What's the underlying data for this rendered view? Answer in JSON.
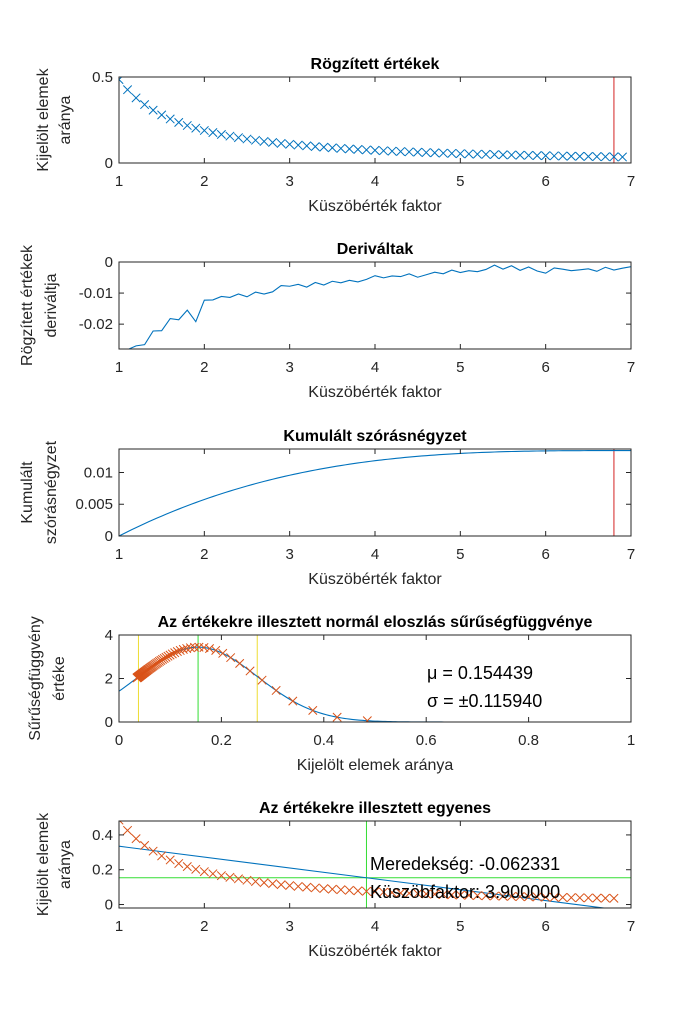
{
  "colors": {
    "blue": "#0072BD",
    "orange": "#D95319",
    "red": "#D42222",
    "green": "#33DD33",
    "yellow": "#EEDD33",
    "axis": "#262626"
  },
  "chart_data": [
    {
      "type": "scatter",
      "title": "Rögzített értékek",
      "xlabel": "Küszöbérték faktor",
      "ylabel": [
        "Kijelölt elemek",
        "aránya"
      ],
      "xlim": [
        1,
        7
      ],
      "ylim": [
        0,
        0.5
      ],
      "xticks": [
        1,
        2,
        3,
        4,
        5,
        6,
        7
      ],
      "yticks": [
        0,
        0.5
      ],
      "ytick_labels": [
        "0",
        "0.5"
      ],
      "series": [
        {
          "marker": "x",
          "color": "#0072BD",
          "curve": {
            "kind": "decay",
            "x_start": 1,
            "x_end": 6.9,
            "step": 0.1,
            "y0": 0.485,
            "asymptote": 0.0,
            "k": 0.72,
            "form": "power"
          }
        }
      ],
      "vlines": [
        {
          "x": 6.8,
          "color": "#D42222",
          "y": [
            0,
            0.5
          ]
        }
      ]
    },
    {
      "type": "line",
      "title": "Deriváltak",
      "xlabel": "Küszöbérték faktor",
      "ylabel": [
        "Rögzített értékek",
        "deriváltja"
      ],
      "xlim": [
        1,
        7
      ],
      "ylim": [
        -0.028,
        0
      ],
      "xticks": [
        1,
        2,
        3,
        4,
        5,
        6,
        7
      ],
      "yticks": [
        -0.02,
        -0.01,
        0
      ],
      "ytick_labels": [
        "-0.02",
        "-0.01",
        "0"
      ],
      "series": [
        {
          "color": "#0072BD",
          "x_start": 1.1,
          "step": 0.1,
          "y": [
            -0.0282,
            -0.027,
            -0.0266,
            -0.0222,
            -0.0221,
            -0.0182,
            -0.0186,
            -0.0155,
            -0.0192,
            -0.0123,
            -0.0122,
            -0.0111,
            -0.0114,
            -0.0103,
            -0.0112,
            -0.0097,
            -0.0103,
            -0.0096,
            -0.0076,
            -0.0078,
            -0.0072,
            -0.0081,
            -0.0066,
            -0.0074,
            -0.0062,
            -0.0067,
            -0.0059,
            -0.0064,
            -0.0056,
            -0.0044,
            -0.0051,
            -0.0045,
            -0.0047,
            -0.0038,
            -0.0049,
            -0.0041,
            -0.0033,
            -0.0038,
            -0.0026,
            -0.0034,
            -0.0028,
            -0.0031,
            -0.0024,
            -0.001,
            -0.0023,
            -0.0012,
            -0.0027,
            -0.0016,
            -0.0029,
            -0.0036,
            -0.0019,
            -0.0023,
            -0.0028,
            -0.0025,
            -0.0022,
            -0.003,
            -0.0017,
            -0.0026,
            -0.002,
            -0.0015
          ]
        }
      ]
    },
    {
      "type": "line",
      "title": "Kumulált szórásnégyzet",
      "xlabel": "Küszöbérték faktor",
      "ylabel": [
        "Kumulált",
        "szórásnégyzet"
      ],
      "xlim": [
        1,
        7
      ],
      "ylim": [
        0,
        0.0137
      ],
      "xticks": [
        1,
        2,
        3,
        4,
        5,
        6,
        7
      ],
      "yticks": [
        0,
        0.005,
        0.01
      ],
      "ytick_labels": [
        "0",
        "0.005",
        "0.01"
      ],
      "series": [
        {
          "color": "#0072BD",
          "curve": {
            "kind": "saturating",
            "x_start": 1,
            "x_end": 7,
            "step": 0.05,
            "ymax": 0.01345,
            "xsat": 6.9
          }
        }
      ],
      "vlines": [
        {
          "x": 6.8,
          "color": "#D42222",
          "y": [
            0,
            0.0137
          ]
        }
      ]
    },
    {
      "type": "line",
      "title": "Az értékekre illesztett normál eloszlás sűrűségfüggvénye",
      "xlabel": "Kijelölt elemek aránya",
      "ylabel": [
        "Sűrűségfüggvény",
        "értéke"
      ],
      "xlim": [
        0,
        1
      ],
      "ylim": [
        0,
        4
      ],
      "xticks": [
        0,
        0.2,
        0.4,
        0.6,
        0.8,
        1
      ],
      "xtick_labels": [
        "0",
        "0.2",
        "0.4",
        "0.6",
        "0.8",
        "1"
      ],
      "yticks": [
        0,
        2,
        4
      ],
      "ytick_labels": [
        "0",
        "2",
        "4"
      ],
      "mu": 0.154439,
      "sigma": 0.11594,
      "series": [
        {
          "color": "#0072BD",
          "curve": {
            "kind": "normal_pdf",
            "x_start": 0,
            "x_end": 1,
            "step": 0.005
          }
        },
        {
          "color": "#D95319",
          "marker": "x",
          "points_from": 0
        }
      ],
      "vlines": [
        {
          "x": 0.038,
          "color": "#EEDD33",
          "y": [
            0,
            4
          ]
        },
        {
          "x": 0.154439,
          "color": "#33DD33",
          "y": [
            0,
            4
          ]
        },
        {
          "x": 0.27,
          "color": "#EEDD33",
          "y": [
            0,
            4
          ]
        }
      ],
      "annotations": [
        "μ = 0.154439",
        "σ = ±0.115940"
      ]
    },
    {
      "type": "scatter",
      "title": "Az értékekre illesztett egyenes",
      "xlabel": "Küszöbérték faktor",
      "ylabel": [
        "Kijelölt elemek",
        "aránya"
      ],
      "xlim": [
        1,
        7
      ],
      "ylim": [
        -0.02,
        0.48
      ],
      "xticks": [
        1,
        2,
        3,
        4,
        5,
        6,
        7
      ],
      "yticks": [
        0,
        0.2,
        0.4
      ],
      "ytick_labels": [
        "0",
        "0.2",
        "0.4"
      ],
      "series": [
        {
          "color": "#0072BD",
          "line": {
            "x": [
              1,
              7
            ],
            "y": [
              0.335,
              -0.04
            ]
          }
        },
        {
          "color": "#D95319",
          "marker": "x",
          "points_from": 0
        }
      ],
      "vlines": [
        {
          "x": 3.9,
          "color": "#33DD33",
          "y": [
            -0.02,
            0.48
          ]
        }
      ],
      "hlines": [
        {
          "y": 0.154,
          "color": "#33DD33",
          "x": [
            1,
            7
          ]
        }
      ],
      "annotations": [
        "Meredekség: -0.062331",
        "Küszöbfaktor: 3.900000"
      ]
    }
  ]
}
